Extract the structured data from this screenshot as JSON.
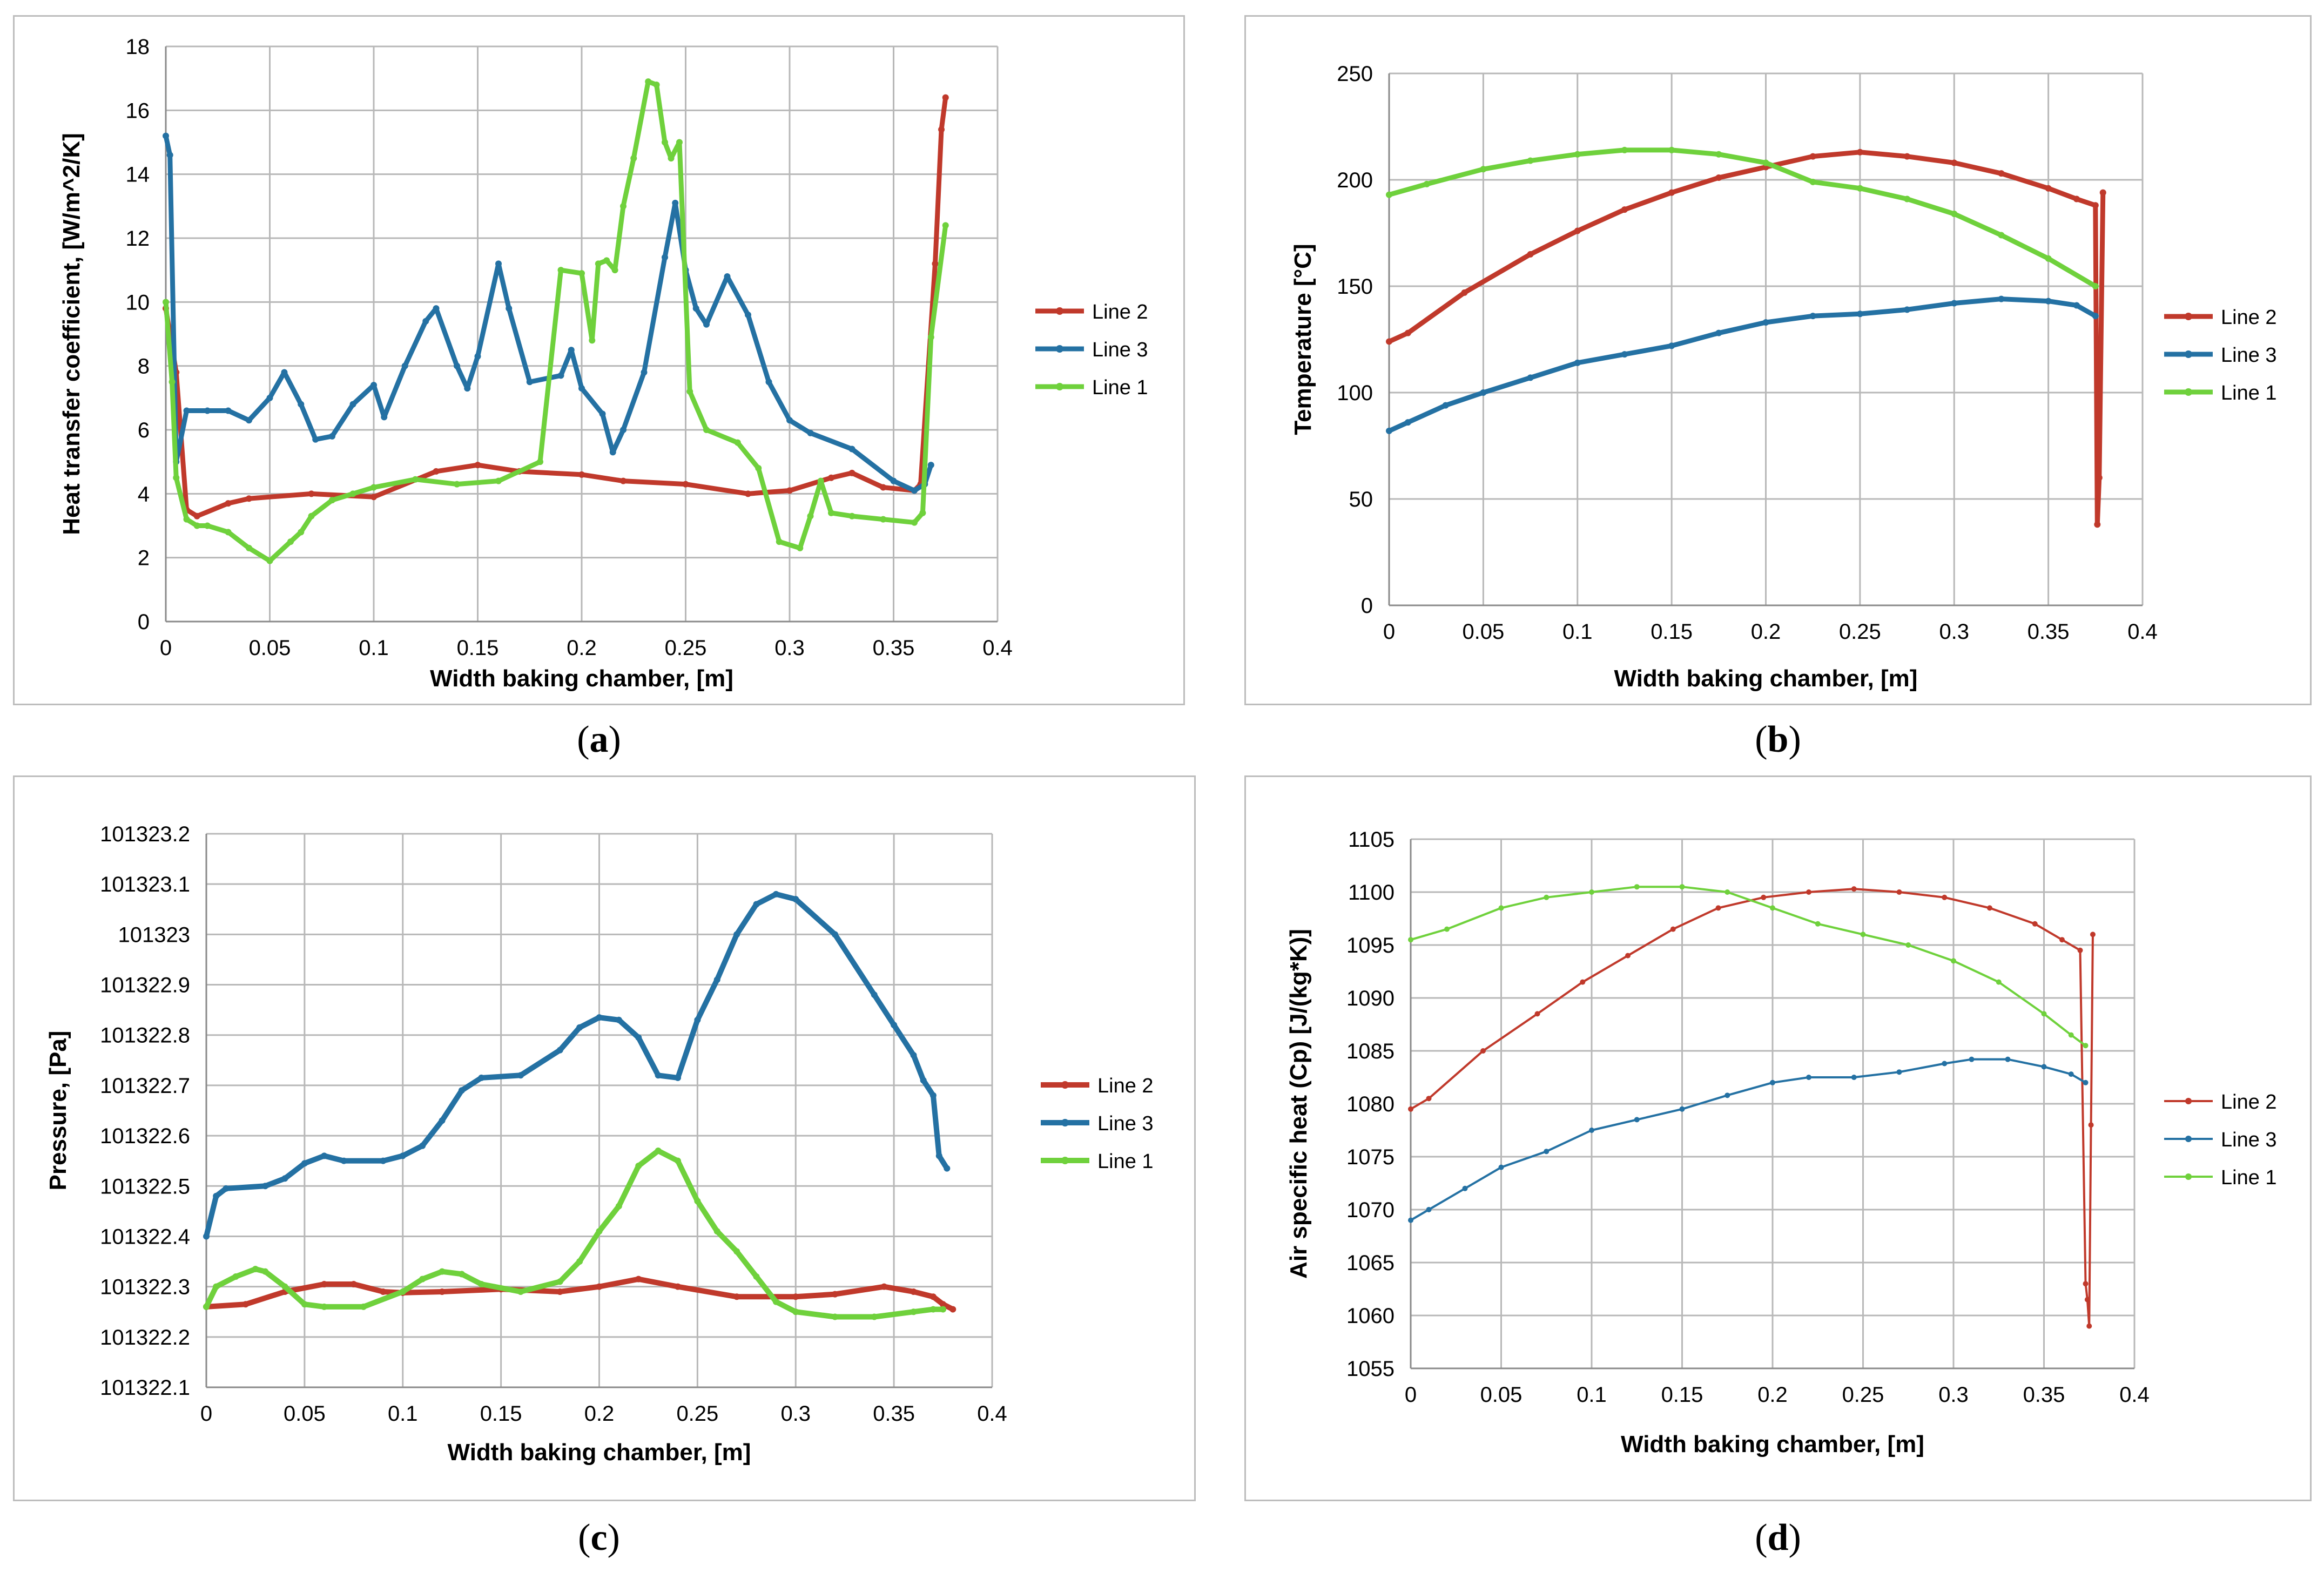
{
  "panels": [
    {
      "caption": "a",
      "chart_data": {
        "type": "line",
        "title": "",
        "xlabel": "Width baking chamber, [m]",
        "ylabel": "Heat transfer coefficient, [W/m^2/K]",
        "xlim": [
          0,
          0.4
        ],
        "ylim": [
          0,
          18
        ],
        "xticks": [
          "0",
          "0.05",
          "0.1",
          "0.15",
          "0.2",
          "0.25",
          "0.3",
          "0.35",
          "0.4"
        ],
        "yticks": [
          "0",
          "2",
          "4",
          "6",
          "8",
          "10",
          "12",
          "14",
          "16",
          "18"
        ],
        "grid": true,
        "legend": "right",
        "series": [
          {
            "name": "Line 2",
            "color": "#c0392b",
            "x": [
              0,
              0.005,
              0.01,
              0.015,
              0.03,
              0.04,
              0.07,
              0.1,
              0.13,
              0.15,
              0.17,
              0.2,
              0.22,
              0.25,
              0.28,
              0.3,
              0.32,
              0.33,
              0.345,
              0.36,
              0.363,
              0.37,
              0.373,
              0.375
            ],
            "y": [
              9.8,
              7.8,
              3.5,
              3.3,
              3.7,
              3.85,
              4.0,
              3.9,
              4.7,
              4.9,
              4.7,
              4.6,
              4.4,
              4.3,
              4.0,
              4.1,
              4.5,
              4.65,
              4.2,
              4.1,
              4.3,
              11.2,
              15.4,
              16.4
            ]
          },
          {
            "name": "Line 3",
            "color": "#2471a3",
            "x": [
              0,
              0.002,
              0.005,
              0.01,
              0.02,
              0.03,
              0.04,
              0.05,
              0.057,
              0.065,
              0.072,
              0.08,
              0.09,
              0.1,
              0.105,
              0.115,
              0.125,
              0.13,
              0.14,
              0.145,
              0.15,
              0.16,
              0.165,
              0.175,
              0.19,
              0.195,
              0.2,
              0.21,
              0.215,
              0.22,
              0.23,
              0.24,
              0.245,
              0.25,
              0.255,
              0.26,
              0.27,
              0.28,
              0.29,
              0.3,
              0.31,
              0.33,
              0.35,
              0.36,
              0.365,
              0.368
            ],
            "y": [
              15.2,
              14.6,
              5.0,
              6.6,
              6.6,
              6.6,
              6.3,
              7.0,
              7.8,
              6.8,
              5.7,
              5.8,
              6.8,
              7.4,
              6.4,
              8.0,
              9.4,
              9.8,
              8.0,
              7.3,
              8.3,
              11.2,
              9.8,
              7.5,
              7.7,
              8.5,
              7.3,
              6.5,
              5.3,
              6.0,
              7.8,
              11.4,
              13.1,
              11.0,
              9.8,
              9.3,
              10.8,
              9.6,
              7.5,
              6.3,
              5.9,
              5.4,
              4.4,
              4.1,
              4.3,
              4.9
            ]
          },
          {
            "name": "Line 1",
            "color": "#6fd13c",
            "x": [
              0,
              0.003,
              0.005,
              0.01,
              0.015,
              0.02,
              0.03,
              0.04,
              0.05,
              0.06,
              0.065,
              0.07,
              0.08,
              0.09,
              0.1,
              0.12,
              0.14,
              0.16,
              0.18,
              0.19,
              0.2,
              0.205,
              0.208,
              0.212,
              0.216,
              0.22,
              0.225,
              0.232,
              0.236,
              0.24,
              0.243,
              0.247,
              0.252,
              0.26,
              0.275,
              0.285,
              0.295,
              0.305,
              0.31,
              0.315,
              0.32,
              0.33,
              0.345,
              0.36,
              0.364,
              0.368,
              0.375
            ],
            "y": [
              10.0,
              7.5,
              4.5,
              3.2,
              3.0,
              3.0,
              2.8,
              2.3,
              1.9,
              2.5,
              2.8,
              3.3,
              3.8,
              4.0,
              4.2,
              4.45,
              4.3,
              4.4,
              5.0,
              11.0,
              10.9,
              8.8,
              11.2,
              11.3,
              11.0,
              13.0,
              14.5,
              16.9,
              16.8,
              15.0,
              14.5,
              15.0,
              7.2,
              6.0,
              5.6,
              4.8,
              2.5,
              2.3,
              3.3,
              4.4,
              3.4,
              3.3,
              3.2,
              3.1,
              3.4,
              8.9,
              12.4
            ]
          }
        ]
      }
    },
    {
      "caption": "b",
      "chart_data": {
        "type": "line",
        "title": "",
        "xlabel": "Width baking chamber, [m]",
        "ylabel": "Temperature [°C]",
        "xlim": [
          0,
          0.4
        ],
        "ylim": [
          0,
          250
        ],
        "xticks": [
          "0",
          "0.05",
          "0.1",
          "0.15",
          "0.2",
          "0.25",
          "0.3",
          "0.35",
          "0.4"
        ],
        "yticks": [
          "0",
          "50",
          "100",
          "150",
          "200",
          "250"
        ],
        "grid": true,
        "legend": "right",
        "series": [
          {
            "name": "Line 2",
            "color": "#c0392b",
            "x": [
              0,
              0.01,
              0.04,
              0.075,
              0.1,
              0.125,
              0.15,
              0.175,
              0.2,
              0.225,
              0.25,
              0.275,
              0.3,
              0.325,
              0.35,
              0.365,
              0.375,
              0.376,
              0.377,
              0.379
            ],
            "y": [
              124,
              128,
              147,
              165,
              176,
              186,
              194,
              201,
              206,
              211,
              213,
              211,
              208,
              203,
              196,
              191,
              188,
              38,
              60,
              194
            ]
          },
          {
            "name": "Line 3",
            "color": "#2471a3",
            "x": [
              0,
              0.01,
              0.03,
              0.05,
              0.075,
              0.1,
              0.125,
              0.15,
              0.175,
              0.2,
              0.225,
              0.25,
              0.275,
              0.3,
              0.325,
              0.35,
              0.365,
              0.375
            ],
            "y": [
              82,
              86,
              94,
              100,
              107,
              114,
              118,
              122,
              128,
              133,
              136,
              137,
              139,
              142,
              144,
              143,
              141,
              136
            ]
          },
          {
            "name": "Line 1",
            "color": "#6fd13c",
            "x": [
              0,
              0.02,
              0.05,
              0.075,
              0.1,
              0.125,
              0.15,
              0.175,
              0.2,
              0.225,
              0.25,
              0.275,
              0.3,
              0.325,
              0.35,
              0.375
            ],
            "y": [
              193,
              198,
              205,
              209,
              212,
              214,
              214,
              212,
              208,
              199,
              196,
              191,
              184,
              174,
              163,
              150
            ]
          }
        ]
      }
    },
    {
      "caption": "c",
      "chart_data": {
        "type": "line",
        "title": "",
        "xlabel": "Width baking chamber, [m]",
        "ylabel": "Pressure, [Pa]",
        "xlim": [
          0,
          0.4
        ],
        "ylim": [
          101322.1,
          101323.2
        ],
        "xticks": [
          "0",
          "0.05",
          "0.1",
          "0.15",
          "0.2",
          "0.25",
          "0.3",
          "0.35",
          "0.4"
        ],
        "yticks": [
          "101322.1",
          "101322.2",
          "101322.3",
          "101322.4",
          "101322.5",
          "101322.6",
          "101322.7",
          "101322.8",
          "101322.9",
          "101323",
          "101323.1",
          "101323.2"
        ],
        "grid": true,
        "legend": "right",
        "series": [
          {
            "name": "Line 2",
            "color": "#c0392b",
            "x": [
              0,
              0.02,
              0.04,
              0.06,
              0.075,
              0.09,
              0.1,
              0.12,
              0.15,
              0.18,
              0.2,
              0.22,
              0.24,
              0.27,
              0.3,
              0.32,
              0.345,
              0.36,
              0.37,
              0.375,
              0.38
            ],
            "y": [
              101322.26,
              101322.265,
              101322.29,
              101322.305,
              101322.305,
              101322.29,
              101322.288,
              101322.29,
              101322.295,
              101322.29,
              101322.3,
              101322.315,
              101322.3,
              101322.28,
              101322.28,
              101322.285,
              101322.3,
              101322.29,
              101322.28,
              101322.265,
              101322.255
            ]
          },
          {
            "name": "Line 3",
            "color": "#2471a3",
            "x": [
              0,
              0.005,
              0.01,
              0.03,
              0.04,
              0.05,
              0.06,
              0.07,
              0.09,
              0.1,
              0.11,
              0.12,
              0.13,
              0.14,
              0.16,
              0.18,
              0.19,
              0.2,
              0.21,
              0.22,
              0.23,
              0.24,
              0.25,
              0.26,
              0.27,
              0.28,
              0.29,
              0.3,
              0.32,
              0.34,
              0.35,
              0.36,
              0.365,
              0.37,
              0.373,
              0.377
            ],
            "y": [
              101322.4,
              101322.48,
              101322.495,
              101322.5,
              101322.515,
              101322.545,
              101322.56,
              101322.55,
              101322.55,
              101322.56,
              101322.58,
              101322.63,
              101322.69,
              101322.715,
              101322.72,
              101322.77,
              101322.815,
              101322.835,
              101322.83,
              101322.795,
              101322.72,
              101322.715,
              101322.83,
              101322.91,
              101323.0,
              101323.06,
              101323.08,
              101323.07,
              101323.0,
              101322.88,
              101322.82,
              101322.76,
              101322.71,
              101322.68,
              101322.56,
              101322.535
            ]
          },
          {
            "name": "Line 1",
            "color": "#6fd13c",
            "x": [
              0,
              0.005,
              0.015,
              0.025,
              0.03,
              0.04,
              0.05,
              0.06,
              0.08,
              0.1,
              0.11,
              0.12,
              0.13,
              0.14,
              0.16,
              0.18,
              0.19,
              0.2,
              0.21,
              0.22,
              0.23,
              0.24,
              0.25,
              0.26,
              0.27,
              0.28,
              0.29,
              0.3,
              0.32,
              0.34,
              0.36,
              0.37,
              0.375
            ],
            "y": [
              101322.26,
              101322.3,
              101322.32,
              101322.335,
              101322.33,
              101322.3,
              101322.265,
              101322.26,
              101322.26,
              101322.29,
              101322.315,
              101322.33,
              101322.325,
              101322.305,
              101322.29,
              101322.31,
              101322.35,
              101322.41,
              101322.46,
              101322.54,
              101322.57,
              101322.55,
              101322.47,
              101322.41,
              101322.37,
              101322.32,
              101322.27,
              101322.25,
              101322.24,
              101322.24,
              101322.25,
              101322.255,
              101322.255
            ]
          }
        ]
      }
    },
    {
      "caption": "d",
      "chart_data": {
        "type": "line",
        "title": "",
        "xlabel": "Width baking chamber, [m]",
        "ylabel": "Air specific heat (Cp)  [J/(kg*K)]",
        "xlim": [
          0,
          0.4
        ],
        "ylim": [
          1055,
          1105
        ],
        "xticks": [
          "0",
          "0.05",
          "0.1",
          "0.15",
          "0.2",
          "0.25",
          "0.3",
          "0.35",
          "0.4"
        ],
        "yticks": [
          "1055",
          "1060",
          "1065",
          "1070",
          "1075",
          "1080",
          "1085",
          "1090",
          "1095",
          "1100",
          "1105"
        ],
        "grid": true,
        "legend": "right",
        "series": [
          {
            "name": "Line 2",
            "color": "#c0392b",
            "x": [
              0,
              0.01,
              0.04,
              0.07,
              0.095,
              0.12,
              0.145,
              0.17,
              0.195,
              0.22,
              0.245,
              0.27,
              0.295,
              0.32,
              0.345,
              0.36,
              0.37,
              0.373,
              0.374,
              0.375,
              0.376,
              0.377
            ],
            "y": [
              1079.5,
              1080.5,
              1085,
              1088.5,
              1091.5,
              1094,
              1096.5,
              1098.5,
              1099.5,
              1100,
              1100.3,
              1100,
              1099.5,
              1098.5,
              1097,
              1095.5,
              1094.5,
              1063,
              1061.5,
              1059,
              1078,
              1096
            ]
          },
          {
            "name": "Line 3",
            "color": "#2471a3",
            "x": [
              0,
              0.01,
              0.03,
              0.05,
              0.075,
              0.1,
              0.125,
              0.15,
              0.175,
              0.2,
              0.22,
              0.245,
              0.27,
              0.295,
              0.31,
              0.33,
              0.35,
              0.365,
              0.373
            ],
            "y": [
              1069,
              1070,
              1072,
              1074,
              1075.5,
              1077.5,
              1078.5,
              1079.5,
              1080.8,
              1082,
              1082.5,
              1082.5,
              1083,
              1083.8,
              1084.2,
              1084.2,
              1083.5,
              1082.8,
              1082
            ]
          },
          {
            "name": "Line 1",
            "color": "#6fd13c",
            "x": [
              0,
              0.02,
              0.05,
              0.075,
              0.1,
              0.125,
              0.15,
              0.175,
              0.2,
              0.225,
              0.25,
              0.275,
              0.3,
              0.325,
              0.35,
              0.365,
              0.373
            ],
            "y": [
              1095.5,
              1096.5,
              1098.5,
              1099.5,
              1100,
              1100.5,
              1100.5,
              1100,
              1098.5,
              1097,
              1096,
              1095,
              1093.5,
              1091.5,
              1088.5,
              1086.5,
              1085.5
            ]
          }
        ]
      }
    }
  ]
}
